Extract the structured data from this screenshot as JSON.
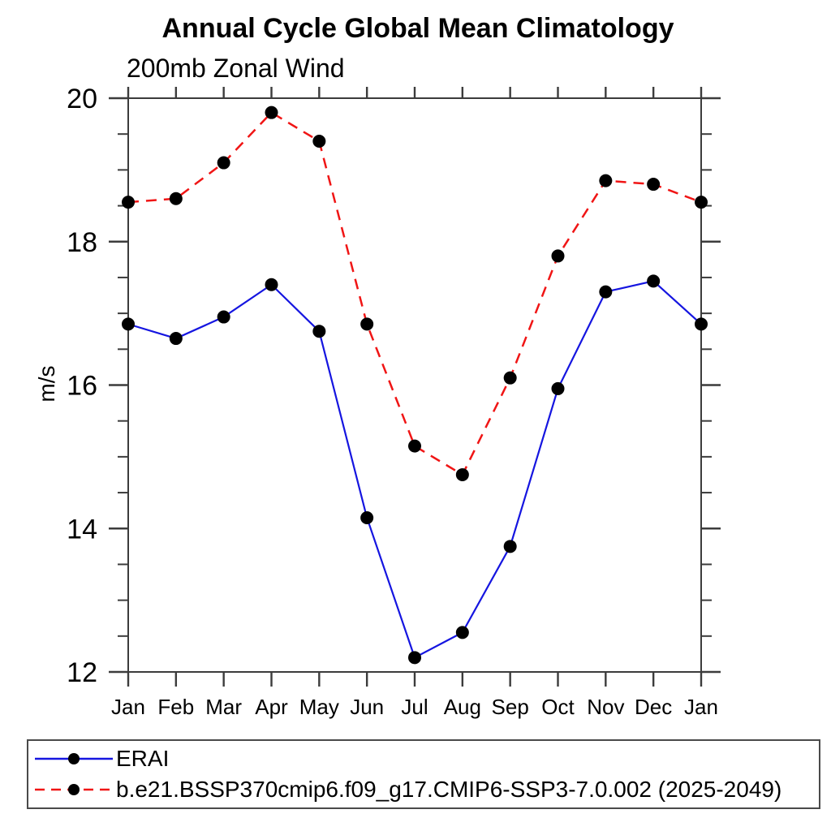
{
  "title": "Annual Cycle Global Mean Climatology",
  "subtitle": "200mb Zonal Wind",
  "chart_data": {
    "type": "line",
    "title": "Annual Cycle Global Mean Climatology",
    "subtitle": "200mb Zonal Wind",
    "xlabel": "",
    "ylabel": "m/s",
    "categories": [
      "Jan",
      "Feb",
      "Mar",
      "Apr",
      "May",
      "Jun",
      "Jul",
      "Aug",
      "Sep",
      "Oct",
      "Nov",
      "Dec",
      "Jan"
    ],
    "ylim": [
      12,
      20
    ],
    "yticks": [
      12,
      14,
      16,
      18,
      20
    ],
    "minor_tick_step": 0.5,
    "grid": false,
    "legend_position": "bottom-left-box",
    "marker": "filled-circle",
    "marker_color": "#000000",
    "axis_color": "#3c3c3c",
    "series": [
      {
        "name": "ERAI",
        "color": "#1515e0",
        "style": "solid",
        "values": [
          16.85,
          16.65,
          16.95,
          17.4,
          16.75,
          14.15,
          12.2,
          12.55,
          13.75,
          15.95,
          17.3,
          17.45,
          16.85
        ]
      },
      {
        "name": "b.e21.BSSP370cmip6.f09_g17.CMIP6-SSP3-7.0.002 (2025-2049)",
        "color": "#f01515",
        "style": "dashed",
        "values": [
          18.55,
          18.6,
          19.1,
          19.8,
          19.4,
          16.85,
          15.15,
          14.75,
          16.1,
          17.8,
          18.85,
          18.8,
          18.55
        ]
      }
    ]
  }
}
